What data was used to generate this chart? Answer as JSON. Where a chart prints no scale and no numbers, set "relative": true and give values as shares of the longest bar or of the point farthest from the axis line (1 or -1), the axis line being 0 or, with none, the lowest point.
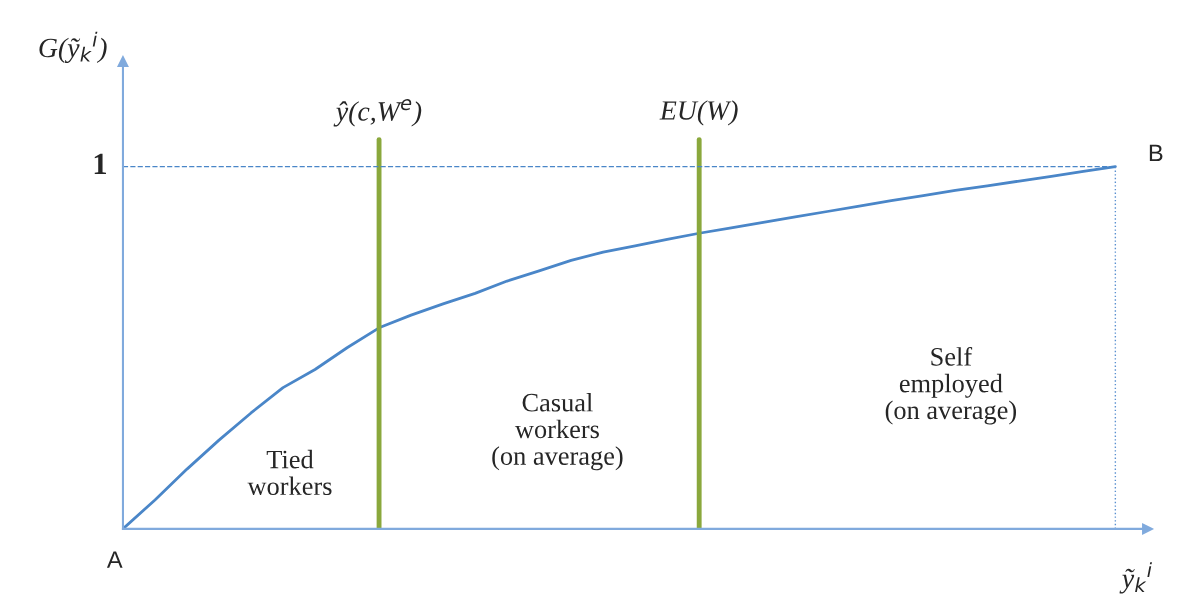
{
  "chart_data": {
    "type": "line",
    "relative": true,
    "xlabel": "ỹ$_{k}$$^{i}$",
    "ylabel": "G(ỹ$_{k}$$^{i}$)",
    "categories": [
      null,
      null,
      null,
      null,
      null,
      null,
      null,
      null,
      null,
      null,
      null,
      null,
      null,
      null,
      null,
      null,
      null,
      null,
      null,
      null,
      null,
      null,
      null,
      null,
      null,
      null,
      null,
      null,
      null,
      null,
      null,
      null
    ],
    "series": [
      {
        "color": "#4a86c8",
        "values": [
          0,
          0.08,
          0.165,
          0.245,
          0.32,
          0.39,
          0.44,
          0.5,
          0.555,
          0.59,
          0.621,
          0.65,
          0.684,
          0.712,
          0.741,
          0.764,
          0.781,
          0.799,
          0.816,
          0.831,
          0.846,
          0.861,
          0.876,
          0.891,
          0.906,
          0.92,
          0.934,
          0.947,
          0.96,
          0.973,
          0.987,
          1
        ]
      }
    ],
    "ref_lines": [
      {
        "axis": "y",
        "value": 1,
        "label": "1",
        "color": "#4a86c8",
        "line_style": "dashed"
      }
    ],
    "annotations": [
      "A",
      "B",
      "Tied\nworkers",
      "Casual\nworkers\n(on average)",
      "Self\nemployed\n(on average)",
      "ŷ(c,W$^{e}$)",
      "EU(W)"
    ],
    "marker": "none",
    "line_style": "solid"
  }
}
